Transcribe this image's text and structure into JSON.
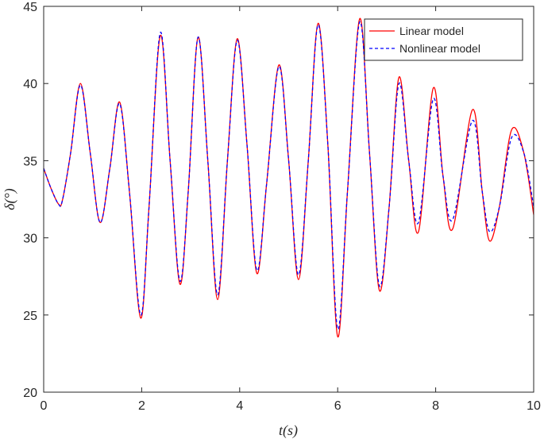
{
  "chart_data": {
    "type": "line",
    "xlabel": "t(s)",
    "ylabel": "δ(°)",
    "xlim": [
      0,
      10
    ],
    "ylim": [
      20,
      45
    ],
    "xticks": [
      "0",
      "2",
      "4",
      "6",
      "8",
      "10"
    ],
    "yticks": [
      "20",
      "25",
      "30",
      "35",
      "40",
      "45"
    ],
    "grid": false,
    "legend_position": "top-right",
    "series": [
      {
        "name": "Linear model",
        "color": "#ff0000",
        "style": "solid",
        "x": [
          0,
          0.15,
          0.3,
          0.38,
          0.55,
          0.75,
          0.95,
          1.15,
          1.35,
          1.55,
          1.75,
          1.98,
          2.15,
          2.38,
          2.58,
          2.78,
          2.95,
          3.15,
          3.35,
          3.55,
          3.75,
          3.95,
          4.15,
          4.35,
          4.55,
          4.8,
          5.0,
          5.2,
          5.4,
          5.6,
          5.8,
          6.0,
          6.2,
          6.45,
          6.65,
          6.85,
          7.05,
          7.25,
          7.45,
          7.65,
          7.95,
          8.15,
          8.35,
          8.75,
          8.95,
          9.1,
          9.3,
          9.55,
          9.8,
          10.0
        ],
        "y": [
          34.5,
          33.2,
          32.2,
          32.4,
          35.5,
          40.0,
          35.5,
          31.0,
          34.5,
          38.8,
          33.0,
          24.8,
          32.0,
          43.1,
          35.0,
          27.0,
          33.0,
          43.0,
          35.0,
          26.0,
          35.0,
          42.9,
          36.0,
          27.7,
          33.5,
          41.2,
          35.0,
          27.3,
          35.0,
          43.9,
          36.0,
          23.6,
          33.0,
          44.2,
          35.5,
          26.6,
          32.0,
          40.4,
          35.0,
          30.4,
          39.7,
          34.0,
          30.6,
          38.3,
          33.0,
          29.8,
          32.0,
          37.0,
          35.5,
          31.5
        ]
      },
      {
        "name": "Nonlinear model",
        "color": "#0000ff",
        "style": "dashed",
        "x": [
          0,
          0.15,
          0.3,
          0.38,
          0.55,
          0.75,
          0.95,
          1.15,
          1.35,
          1.55,
          1.75,
          1.98,
          2.15,
          2.38,
          2.58,
          2.78,
          2.95,
          3.15,
          3.35,
          3.55,
          3.75,
          3.95,
          4.15,
          4.35,
          4.55,
          4.8,
          5.0,
          5.2,
          5.4,
          5.6,
          5.8,
          6.0,
          6.2,
          6.45,
          6.65,
          6.85,
          7.05,
          7.25,
          7.45,
          7.65,
          7.95,
          8.15,
          8.35,
          8.75,
          8.95,
          9.1,
          9.3,
          9.55,
          9.8,
          10.0
        ],
        "y": [
          34.5,
          33.2,
          32.2,
          32.4,
          35.5,
          39.9,
          35.5,
          31.0,
          34.5,
          38.7,
          33.0,
          25.0,
          32.0,
          43.3,
          35.0,
          27.2,
          33.0,
          43.0,
          35.0,
          26.3,
          35.0,
          42.8,
          36.0,
          27.9,
          33.5,
          41.1,
          35.0,
          27.6,
          35.0,
          43.8,
          36.0,
          24.1,
          33.0,
          44.0,
          35.5,
          26.9,
          32.0,
          40.0,
          35.0,
          31.0,
          39.0,
          34.0,
          31.2,
          37.6,
          33.0,
          30.4,
          32.0,
          36.5,
          35.5,
          32.0
        ]
      }
    ]
  }
}
